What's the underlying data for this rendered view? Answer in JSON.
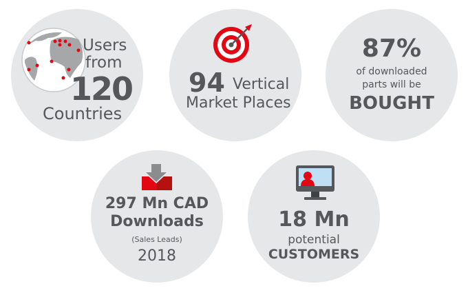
{
  "stats": [
    {
      "line1": "Users",
      "line2": "from",
      "number": "120",
      "line3": "Countries",
      "icon": "globe-icon"
    },
    {
      "number": "94",
      "line1": "Vertical",
      "line2": "Market Places",
      "icon": "target-icon"
    },
    {
      "number": "87%",
      "line1": "of downloaded",
      "line2": "parts will be",
      "line3": "BOUGHT"
    },
    {
      "line1": "297 Mn CAD",
      "line2": "Downloads",
      "line3": "(Sales Leads)",
      "line4": "2018",
      "icon": "download-tray-icon"
    },
    {
      "number": "18 Mn",
      "line1": "potential",
      "line2": "CUSTOMERS",
      "icon": "monitor-user-icon"
    }
  ],
  "colors": {
    "circle": "#e6e7e8",
    "text": "#54585b",
    "accent": "#e30613"
  }
}
